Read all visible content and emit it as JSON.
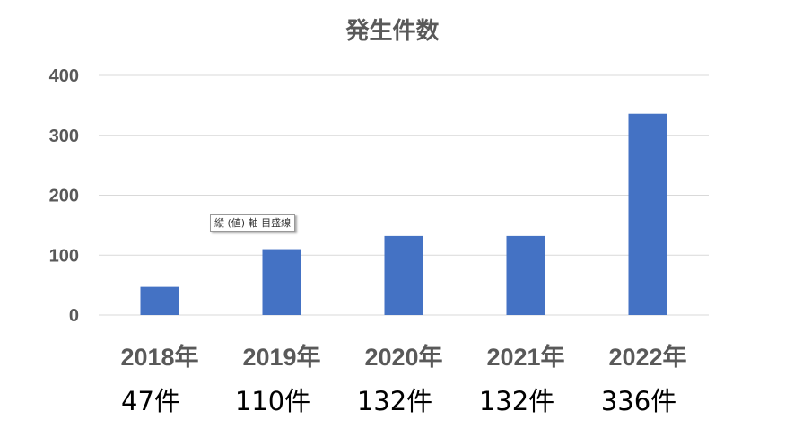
{
  "chart_data": {
    "type": "bar",
    "title": "発生件数",
    "categories": [
      "2018年",
      "2019年",
      "2020年",
      "2021年",
      "2022年"
    ],
    "values": [
      47,
      110,
      132,
      132,
      336
    ],
    "value_labels": [
      "47件",
      "110件",
      "132件",
      "132件",
      "336件"
    ],
    "ylim": [
      0,
      400
    ],
    "yticks": [
      0,
      100,
      200,
      300,
      400
    ],
    "grid": true,
    "bar_color": "#4472C4",
    "grid_color": "#D9D9D9"
  },
  "tooltip": "縦 (値) 軸 目盛線"
}
